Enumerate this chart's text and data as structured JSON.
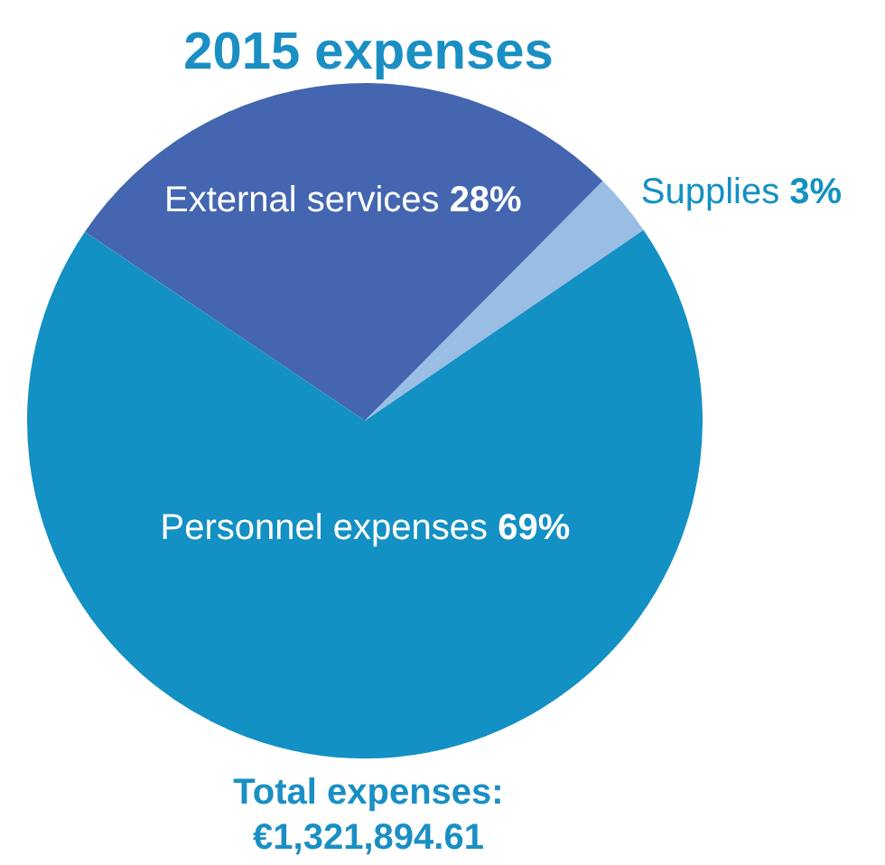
{
  "chart_data": {
    "type": "pie",
    "title": "2015 expenses",
    "categories": [
      "External services",
      "Supplies",
      "Personnel expenses"
    ],
    "values": [
      28,
      3,
      69
    ],
    "colors": [
      "#4466b0",
      "#99bde3",
      "#1390c4"
    ],
    "value_labels": [
      "28%",
      "3%",
      "69%"
    ],
    "annotations": [
      "Total expenses:\n€1,321,894.61"
    ]
  }
}
